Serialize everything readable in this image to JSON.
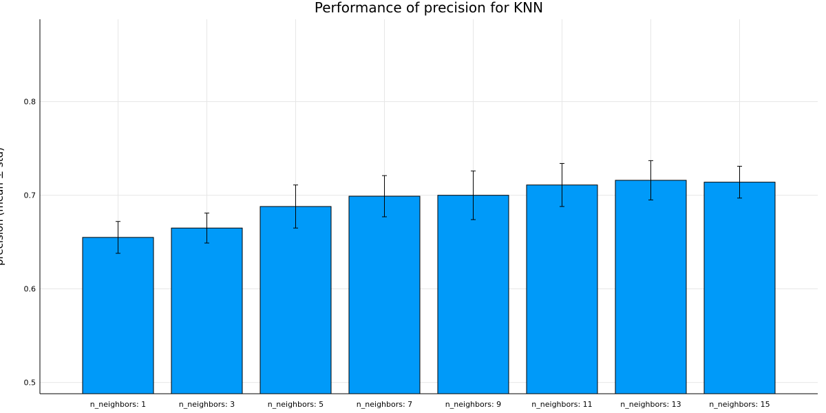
{
  "chart_data": {
    "type": "bar",
    "title": "Performance of precision for KNN",
    "xlabel": "",
    "ylabel": "precision (mean ± std)",
    "categories": [
      "n_neighbors: 1",
      "n_neighbors: 3",
      "n_neighbors: 5",
      "n_neighbors: 7",
      "n_neighbors: 9",
      "n_neighbors: 11",
      "n_neighbors: 13",
      "n_neighbors: 15"
    ],
    "values": [
      0.655,
      0.665,
      0.688,
      0.699,
      0.7,
      0.711,
      0.716,
      0.714
    ],
    "std": [
      0.017,
      0.016,
      0.023,
      0.022,
      0.026,
      0.023,
      0.021,
      0.017
    ],
    "ylim": [
      0.488,
      0.888
    ],
    "yticks": [
      0.5,
      0.6,
      0.7,
      0.8
    ],
    "ytick_labels": [
      "0.5",
      "0.6",
      "0.7",
      "0.8"
    ],
    "grid": true,
    "bar_color": "#009af9",
    "legend": "none"
  }
}
